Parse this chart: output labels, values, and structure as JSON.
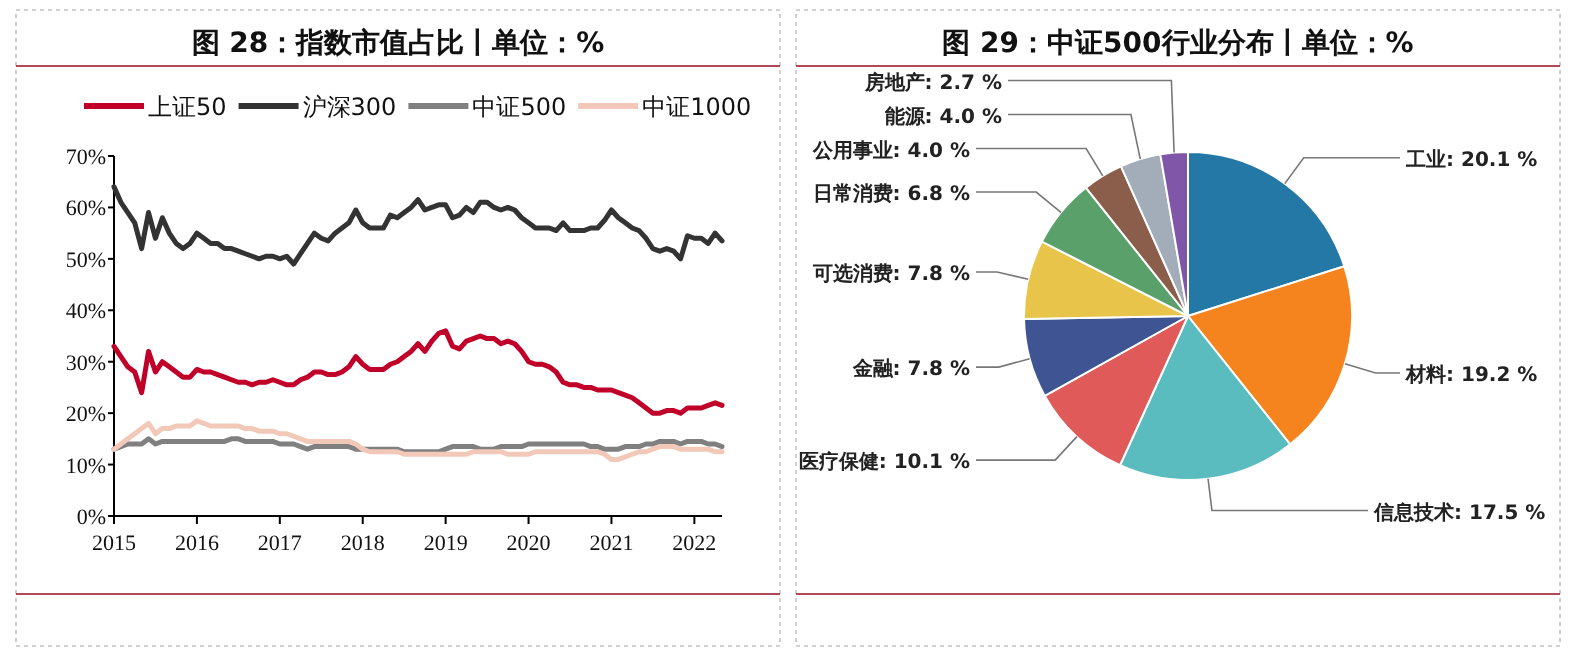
{
  "chart_data": [
    {
      "type": "line",
      "title": "图 28：指数市值占比丨单位：%",
      "legend": "top",
      "x": [
        "2015-01",
        "2015-02",
        "2015-03",
        "2015-04",
        "2015-05",
        "2015-06",
        "2015-07",
        "2015-08",
        "2015-09",
        "2015-10",
        "2015-11",
        "2015-12",
        "2016-01",
        "2016-02",
        "2016-03",
        "2016-04",
        "2016-05",
        "2016-06",
        "2016-07",
        "2016-08",
        "2016-09",
        "2016-10",
        "2016-11",
        "2016-12",
        "2017-01",
        "2017-02",
        "2017-03",
        "2017-04",
        "2017-05",
        "2017-06",
        "2017-07",
        "2017-08",
        "2017-09",
        "2017-10",
        "2017-11",
        "2017-12",
        "2018-01",
        "2018-02",
        "2018-03",
        "2018-04",
        "2018-05",
        "2018-06",
        "2018-07",
        "2018-08",
        "2018-09",
        "2018-10",
        "2018-11",
        "2018-12",
        "2019-01",
        "2019-02",
        "2019-03",
        "2019-04",
        "2019-05",
        "2019-06",
        "2019-07",
        "2019-08",
        "2019-09",
        "2019-10",
        "2019-11",
        "2019-12",
        "2020-01",
        "2020-02",
        "2020-03",
        "2020-04",
        "2020-05",
        "2020-06",
        "2020-07",
        "2020-08",
        "2020-09",
        "2020-10",
        "2020-11",
        "2020-12",
        "2021-01",
        "2021-02",
        "2021-03",
        "2021-04",
        "2021-05",
        "2021-06",
        "2021-07",
        "2021-08",
        "2021-09",
        "2021-10",
        "2021-11",
        "2021-12",
        "2022-01",
        "2022-02",
        "2022-03",
        "2022-04",
        "2022-05"
      ],
      "xlim": [
        "2015-01",
        "2022-05"
      ],
      "xticks": [
        "2015",
        "2016",
        "2017",
        "2018",
        "2019",
        "2020",
        "2021",
        "2022"
      ],
      "ylim": [
        0,
        70
      ],
      "yticks": [
        {
          "value": 0,
          "label": "0%"
        },
        {
          "value": 10,
          "label": "10%"
        },
        {
          "value": 20,
          "label": "20%"
        },
        {
          "value": 30,
          "label": "30%"
        },
        {
          "value": 40,
          "label": "40%"
        },
        {
          "value": 50,
          "label": "50%"
        },
        {
          "value": 60,
          "label": "60%"
        },
        {
          "value": 70,
          "label": "70%"
        }
      ],
      "series": [
        {
          "name": "上证50",
          "color": "#c00029",
          "values": [
            33,
            31,
            29,
            28,
            24,
            32,
            28,
            30,
            29,
            28,
            27,
            27,
            28.5,
            28,
            28,
            27.5,
            27,
            26.5,
            26,
            26,
            25.5,
            26,
            26,
            26.5,
            26,
            25.5,
            25.5,
            26.5,
            27,
            28,
            28,
            27.5,
            27.5,
            28,
            29,
            31,
            29.5,
            28.5,
            28.5,
            28.5,
            29.5,
            30,
            31,
            32,
            33.5,
            32,
            34,
            35.5,
            36,
            33,
            32.5,
            34,
            34.5,
            35,
            34.5,
            34.5,
            33.5,
            34,
            33.5,
            32,
            30,
            29.5,
            29.5,
            29,
            28,
            26,
            25.5,
            25.5,
            25,
            25,
            24.5,
            24.5,
            24.5,
            24,
            23.5,
            23,
            22,
            21,
            20,
            20,
            20.5,
            20.5,
            20,
            21,
            21,
            21,
            21.5,
            22,
            21.5
          ]
        },
        {
          "name": "沪深300",
          "color": "#333333",
          "values": [
            64,
            61,
            59,
            57,
            52,
            59,
            54,
            58,
            55,
            53,
            52,
            53,
            55,
            54,
            53,
            53,
            52,
            52,
            51.5,
            51,
            50.5,
            50,
            50.5,
            50.5,
            50,
            50.5,
            49,
            51,
            53,
            55,
            54,
            53.5,
            55,
            56,
            57,
            59.5,
            57,
            56,
            56,
            56,
            58.5,
            58,
            59,
            60,
            61.5,
            59.5,
            60,
            60.5,
            60.5,
            58,
            58.5,
            60,
            59,
            61,
            61,
            60,
            59.5,
            60,
            59.5,
            58,
            57,
            56,
            56,
            56,
            55.5,
            57,
            55.5,
            55.5,
            55.5,
            56,
            56,
            57.5,
            59.5,
            58,
            57,
            56,
            55.5,
            54,
            52,
            51.5,
            52,
            51.5,
            50,
            54.5,
            54,
            54,
            53,
            55,
            53.5
          ]
        },
        {
          "name": "中证500",
          "color": "#808080",
          "values": [
            13,
            13.5,
            14,
            14,
            14,
            15,
            14,
            14.5,
            14.5,
            14.5,
            14.5,
            14.5,
            14.5,
            14.5,
            14.5,
            14.5,
            14.5,
            15,
            15,
            14.5,
            14.5,
            14.5,
            14.5,
            14.5,
            14,
            14,
            14,
            13.5,
            13,
            13.5,
            13.5,
            13.5,
            13.5,
            13.5,
            13.5,
            13,
            13,
            13,
            13,
            13,
            13,
            13,
            12.5,
            12.5,
            12.5,
            12.5,
            12.5,
            12.5,
            13,
            13.5,
            13.5,
            13.5,
            13.5,
            13,
            13,
            13,
            13.5,
            13.5,
            13.5,
            13.5,
            14,
            14,
            14,
            14,
            14,
            14,
            14,
            14,
            14,
            13.5,
            13.5,
            13,
            13,
            13,
            13.5,
            13.5,
            13.5,
            14,
            14,
            14.5,
            14.5,
            14.5,
            14,
            14.5,
            14.5,
            14.5,
            14,
            14,
            13.5
          ]
        },
        {
          "name": "中证1000",
          "color": "#f2c8b8",
          "values": [
            13,
            14,
            15,
            16,
            17,
            18,
            16,
            17,
            17,
            17.5,
            17.5,
            17.5,
            18.5,
            18,
            17.5,
            17.5,
            17.5,
            17.5,
            17.5,
            17,
            17,
            16.5,
            16.5,
            16.5,
            16,
            16,
            15.5,
            15,
            14.5,
            14.5,
            14.5,
            14.5,
            14.5,
            14.5,
            14.5,
            14,
            13,
            12.5,
            12.5,
            12.5,
            12.5,
            12.5,
            12,
            12,
            12,
            12,
            12,
            12,
            12,
            12,
            12,
            12,
            12.5,
            12.5,
            12.5,
            12.5,
            12.5,
            12,
            12,
            12,
            12,
            12.5,
            12.5,
            12.5,
            12.5,
            12.5,
            12.5,
            12.5,
            12.5,
            12.5,
            12.5,
            12,
            11,
            11,
            11.5,
            12,
            12.5,
            12.5,
            13,
            13.5,
            13.5,
            13.5,
            13,
            13,
            13,
            13,
            13,
            12.5,
            12.5
          ]
        }
      ]
    },
    {
      "type": "pie",
      "title": "图 29：中证500行业分布丨单位：%",
      "categories": [
        "工业",
        "材料",
        "信息技术",
        "医疗保健",
        "金融",
        "可选消费",
        "日常消费",
        "公用事业",
        "能源",
        "房地产"
      ],
      "values": [
        20.1,
        19.2,
        17.5,
        10.1,
        7.8,
        7.8,
        6.8,
        4.0,
        4.0,
        2.7
      ],
      "value_labels": [
        "20.1 %",
        "19.2 %",
        "17.5 %",
        "10.1 %",
        "7.8 %",
        "7.8 %",
        "6.8 %",
        "4.0 %",
        "4.0 %",
        "2.7 %"
      ],
      "colors": [
        "#2378a6",
        "#f5841f",
        "#5bbcbf",
        "#e05a5a",
        "#3f5593",
        "#e8c44a",
        "#5aa06a",
        "#8b5e4b",
        "#a3acb9",
        "#8057a8"
      ]
    }
  ]
}
